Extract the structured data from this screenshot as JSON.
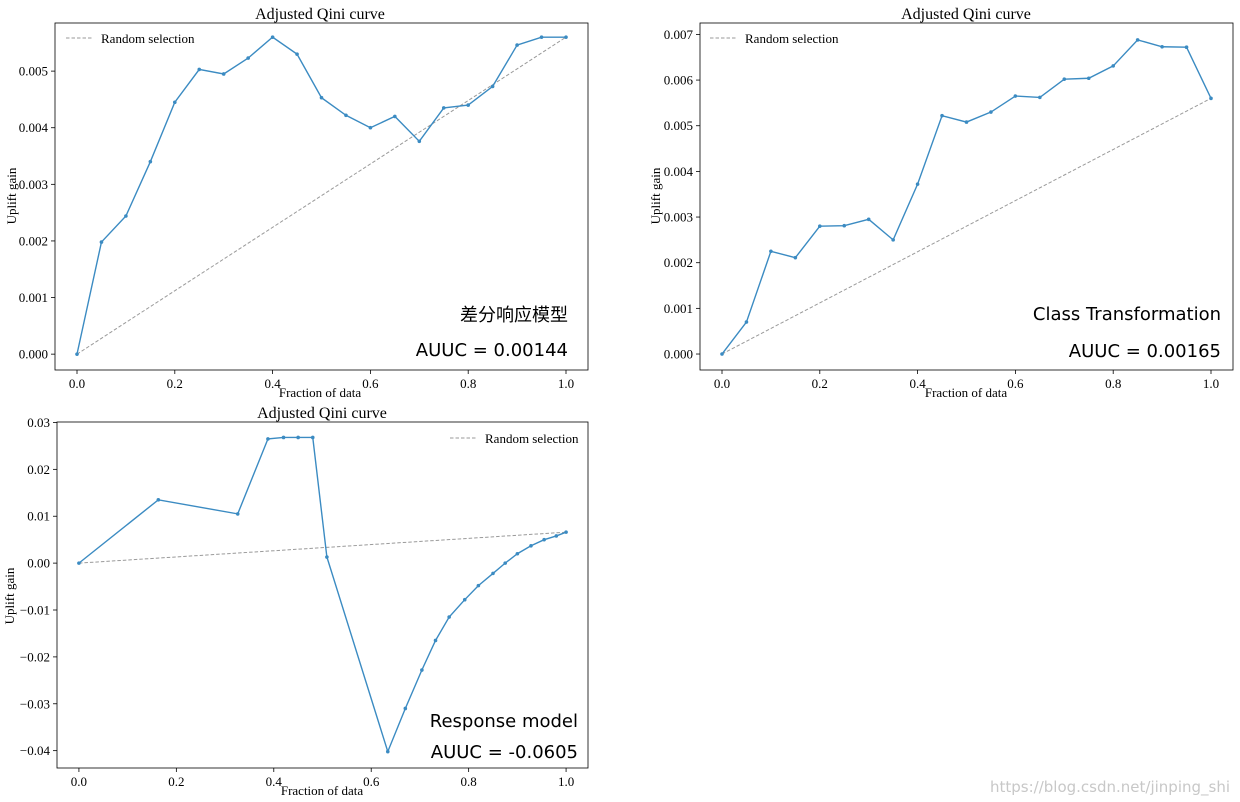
{
  "watermark": "https://blog.csdn.net/jinping_shi",
  "colors": {
    "series": "#3b8bc2",
    "random": "#9a9a9a",
    "axis": "#000000"
  },
  "chart_data": [
    {
      "type": "line",
      "title": "Adjusted Qini curve",
      "xlabel": "Fraction of data",
      "ylabel": "Uplift gain",
      "xlim": [
        -0.045,
        1.045
      ],
      "ylim": [
        -0.00028,
        0.00585
      ],
      "xticks": [
        0.0,
        0.2,
        0.4,
        0.6,
        0.8,
        1.0
      ],
      "xtick_labels": [
        "0.0",
        "0.2",
        "0.4",
        "0.6",
        "0.8",
        "1.0"
      ],
      "yticks": [
        0.0,
        0.001,
        0.002,
        0.003,
        0.004,
        0.005
      ],
      "ytick_labels": [
        "0.000",
        "0.001",
        "0.002",
        "0.003",
        "0.004",
        "0.005"
      ],
      "legend": {
        "label": "Random selection",
        "placement": "upper-left"
      },
      "annotation_name": "差分响应模型",
      "annotation_auuc": "AUUC = 0.00144",
      "series": {
        "x": [
          0.0,
          0.05,
          0.1,
          0.15,
          0.2,
          0.25,
          0.3,
          0.35,
          0.4,
          0.45,
          0.5,
          0.55,
          0.6,
          0.65,
          0.7,
          0.75,
          0.8,
          0.85,
          0.9,
          0.95,
          1.0
        ],
        "y": [
          0.0,
          0.00198,
          0.00244,
          0.0034,
          0.00445,
          0.00503,
          0.00495,
          0.00523,
          0.0056,
          0.0053,
          0.00453,
          0.00422,
          0.004,
          0.0042,
          0.00376,
          0.00435,
          0.0044,
          0.00473,
          0.00546,
          0.0056,
          0.0056
        ]
      },
      "random": {
        "x": [
          0.0,
          1.0
        ],
        "y": [
          0.0,
          0.0056
        ]
      }
    },
    {
      "type": "line",
      "title": "Adjusted Qini curve",
      "xlabel": "Fraction of data",
      "ylabel": "Uplift gain",
      "xlim": [
        -0.045,
        1.045
      ],
      "ylim": [
        -0.00035,
        0.00725
      ],
      "xticks": [
        0.0,
        0.2,
        0.4,
        0.6,
        0.8,
        1.0
      ],
      "xtick_labels": [
        "0.0",
        "0.2",
        "0.4",
        "0.6",
        "0.8",
        "1.0"
      ],
      "yticks": [
        0.0,
        0.001,
        0.002,
        0.003,
        0.004,
        0.005,
        0.006,
        0.007
      ],
      "ytick_labels": [
        "0.000",
        "0.001",
        "0.002",
        "0.003",
        "0.004",
        "0.005",
        "0.006",
        "0.007"
      ],
      "legend": {
        "label": "Random selection",
        "placement": "upper-left"
      },
      "annotation_name": "Class Transformation",
      "annotation_auuc": "AUUC = 0.00165",
      "series": {
        "x": [
          0.0,
          0.05,
          0.1,
          0.15,
          0.2,
          0.25,
          0.3,
          0.35,
          0.4,
          0.45,
          0.5,
          0.55,
          0.6,
          0.65,
          0.7,
          0.75,
          0.8,
          0.85,
          0.9,
          0.95,
          1.0
        ],
        "y": [
          0.0,
          0.0007,
          0.00225,
          0.00211,
          0.0028,
          0.00281,
          0.00295,
          0.0025,
          0.00372,
          0.00522,
          0.00508,
          0.0053,
          0.00565,
          0.00562,
          0.00602,
          0.00604,
          0.00631,
          0.00688,
          0.00673,
          0.00672,
          0.0056
        ]
      },
      "random": {
        "x": [
          0.0,
          1.0
        ],
        "y": [
          0.0,
          0.0056
        ]
      }
    },
    {
      "type": "line",
      "title": "Adjusted Qini curve",
      "xlabel": "Fraction of data",
      "ylabel": "Uplift gain",
      "xlim": [
        -0.045,
        1.045
      ],
      "ylim": [
        -0.0437,
        0.0301
      ],
      "xticks": [
        0.0,
        0.2,
        0.4,
        0.6,
        0.8,
        1.0
      ],
      "xtick_labels": [
        "0.0",
        "0.2",
        "0.4",
        "0.6",
        "0.8",
        "1.0"
      ],
      "yticks": [
        -0.04,
        -0.03,
        -0.02,
        -0.01,
        0.0,
        0.01,
        0.02,
        0.03
      ],
      "ytick_labels": [
        "−0.04",
        "−0.03",
        "−0.02",
        "−0.01",
        "0.00",
        "0.01",
        "0.02",
        "0.03"
      ],
      "legend": {
        "label": "Random selection",
        "placement": "upper-right"
      },
      "annotation_name": "Response model",
      "annotation_auuc": "AUUC = -0.0605",
      "series": {
        "x": [
          0.0,
          0.163,
          0.326,
          0.388,
          0.42,
          0.45,
          0.48,
          0.509,
          0.634,
          0.67,
          0.704,
          0.732,
          0.76,
          0.792,
          0.82,
          0.85,
          0.875,
          0.9,
          0.928,
          0.955,
          0.98,
          1.0
        ],
        "y": [
          0.0,
          0.0135,
          0.0105,
          0.0265,
          0.0268,
          0.0268,
          0.0268,
          0.0013,
          -0.0402,
          -0.031,
          -0.0228,
          -0.0165,
          -0.0115,
          -0.0078,
          -0.0048,
          -0.0022,
          0.0,
          0.002,
          0.0037,
          0.005,
          0.0058,
          0.0066
        ]
      },
      "random": {
        "x": [
          0.0,
          1.0
        ],
        "y": [
          0.0,
          0.0066
        ]
      }
    }
  ]
}
